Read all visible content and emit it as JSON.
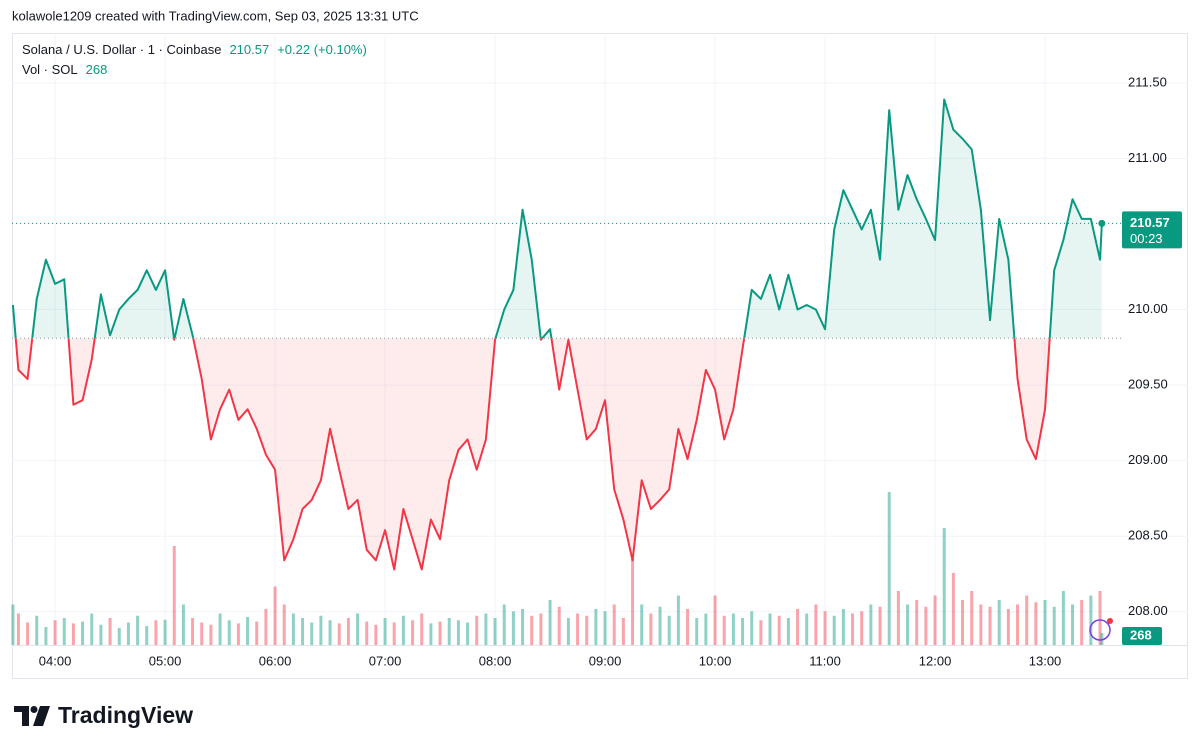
{
  "header": {
    "text": "kolawole1209 created with TradingView.com, Sep 03, 2025 13:31 UTC"
  },
  "chart_data": {
    "type": "line",
    "title": "Solana / U.S. Dollar · 1 · Coinbase",
    "change": "+0.22 (+0.10%)",
    "countdown": "00:23",
    "baseline": 209.81,
    "color": "#089981",
    "down_color": "#f23645",
    "x": [
      217,
      220,
      225,
      230,
      235,
      240,
      245,
      250,
      255,
      260,
      265,
      270,
      275,
      280,
      285,
      290,
      295,
      300,
      305,
      310,
      315,
      320,
      325,
      330,
      335,
      340,
      345,
      350,
      355,
      360,
      365,
      370,
      375,
      380,
      385,
      390,
      395,
      400,
      405,
      410,
      415,
      420,
      425,
      430,
      435,
      440,
      445,
      450,
      455,
      460,
      465,
      470,
      475,
      480,
      485,
      490,
      495,
      500,
      505,
      510,
      515,
      520,
      525,
      530,
      535,
      540,
      545,
      550,
      555,
      560,
      565,
      570,
      575,
      580,
      585,
      590,
      595,
      600,
      605,
      610,
      615,
      620,
      625,
      630,
      635,
      640,
      645,
      650,
      655,
      660,
      665,
      670,
      675,
      680,
      685,
      690,
      695,
      700,
      705,
      710,
      715,
      720,
      725,
      730,
      735,
      740,
      745,
      750,
      755,
      760,
      765,
      770,
      775,
      780,
      785,
      790,
      795,
      800,
      805,
      810,
      811
    ],
    "values": [
      210.03,
      209.6,
      209.54,
      210.07,
      210.33,
      210.17,
      210.2,
      209.37,
      209.4,
      209.67,
      210.1,
      209.83,
      210.0,
      210.07,
      210.13,
      210.26,
      210.13,
      210.26,
      209.8,
      210.07,
      209.83,
      209.54,
      209.14,
      209.34,
      209.47,
      209.27,
      209.34,
      209.21,
      209.04,
      208.94,
      208.34,
      208.48,
      208.68,
      208.74,
      208.87,
      209.21,
      208.94,
      208.68,
      208.74,
      208.41,
      208.34,
      208.54,
      208.28,
      208.68,
      208.48,
      208.28,
      208.61,
      208.48,
      208.87,
      209.07,
      209.14,
      208.94,
      209.14,
      209.8,
      210.0,
      210.13,
      210.66,
      210.33,
      209.8,
      209.87,
      209.47,
      209.8,
      209.47,
      209.14,
      209.21,
      209.4,
      208.81,
      208.61,
      208.34,
      208.87,
      208.68,
      208.74,
      208.81,
      209.21,
      209.01,
      209.27,
      209.6,
      209.47,
      209.14,
      209.34,
      209.74,
      210.13,
      210.07,
      210.23,
      210.0,
      210.23,
      210.0,
      210.03,
      210.0,
      209.87,
      210.53,
      210.79,
      210.66,
      210.53,
      210.66,
      210.33,
      211.32,
      210.66,
      210.89,
      210.73,
      210.6,
      210.46,
      211.39,
      211.19,
      211.13,
      211.06,
      210.66,
      209.93,
      210.6,
      210.33,
      209.54,
      209.14,
      209.01,
      209.34,
      210.26,
      210.46,
      210.73,
      210.6,
      210.6,
      210.33,
      210.57
    ],
    "volume": {
      "label": "Vol · SOL",
      "values": [
        900,
        700,
        500,
        650,
        400,
        550,
        600,
        480,
        520,
        700,
        450,
        600,
        380,
        500,
        650,
        420,
        550,
        560,
        2200,
        900,
        600,
        500,
        450,
        700,
        550,
        480,
        620,
        520,
        800,
        1300,
        900,
        700,
        600,
        500,
        650,
        550,
        480,
        600,
        700,
        520,
        450,
        600,
        500,
        650,
        550,
        700,
        480,
        520,
        600,
        550,
        500,
        650,
        700,
        600,
        900,
        750,
        800,
        650,
        700,
        1000,
        850,
        600,
        700,
        650,
        800,
        750,
        900,
        600,
        2000,
        900,
        700,
        850,
        650,
        1100,
        800,
        600,
        700,
        1100,
        650,
        700,
        600,
        750,
        550,
        700,
        650,
        600,
        800,
        700,
        900,
        750,
        650,
        800,
        700,
        750,
        900,
        850,
        3400,
        1200,
        900,
        1000,
        850,
        1100,
        2600,
        1600,
        1000,
        1200,
        900,
        850,
        1000,
        800,
        900,
        1100,
        950,
        1000,
        850,
        1200,
        900,
        1000,
        1100,
        1200,
        268
      ]
    },
    "xlim": [
      216.5,
      819.8
    ],
    "ylim": [
      207.78,
      211.83
    ],
    "xticks": [
      {
        "value": 240,
        "label": "04:00"
      },
      {
        "value": 300,
        "label": "05:00"
      },
      {
        "value": 360,
        "label": "06:00"
      },
      {
        "value": 420,
        "label": "07:00"
      },
      {
        "value": 480,
        "label": "08:00"
      },
      {
        "value": 540,
        "label": "09:00"
      },
      {
        "value": 600,
        "label": "10:00"
      },
      {
        "value": 660,
        "label": "11:00"
      },
      {
        "value": 720,
        "label": "12:00"
      },
      {
        "value": 780,
        "label": "13:00"
      }
    ],
    "yticks": [
      {
        "value": 208,
        "label": "208.00"
      },
      {
        "value": 208.5,
        "label": "208.50"
      },
      {
        "value": 209,
        "label": "209.00"
      },
      {
        "value": 209.5,
        "label": "209.50"
      },
      {
        "value": 210,
        "label": "210.00"
      },
      {
        "value": 211,
        "label": "211.00"
      },
      {
        "value": 211.5,
        "label": "211.50"
      }
    ],
    "grid": true
  },
  "footer": {
    "brand": "TradingView"
  }
}
